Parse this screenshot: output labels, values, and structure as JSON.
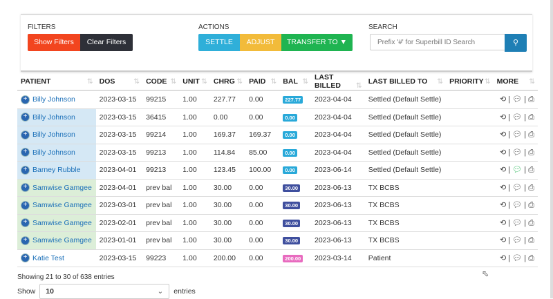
{
  "filters": {
    "label": "FILTERS",
    "show": "Show Filters",
    "clear": "Clear Filters"
  },
  "actions": {
    "label": "ACTIONS",
    "settle": "SETTLE",
    "adjust": "ADJUST",
    "transfer": "TRANSFER TO ▼"
  },
  "search": {
    "label": "SEARCH",
    "placeholder": "Prefix '#' for Superbill ID Search",
    "icon": "search-icon"
  },
  "columns": [
    "PATIENT",
    "DOS",
    "CODE",
    "UNIT",
    "CHRG",
    "PAID",
    "BAL",
    "LAST BILLED",
    "LAST BILLED TO",
    "PRIORITY",
    "MORE"
  ],
  "colors": {
    "blue_badge": "#29a9d9",
    "indigo_badge": "#3f4f9e",
    "pink_badge": "#e86bbf",
    "patient_blue": "#d5e8f5",
    "patient_green": "#dceed8"
  },
  "rows": [
    {
      "patient": "Billy Johnson",
      "dos": "2023-03-15",
      "code": "99215",
      "unit": "1.00",
      "chrg": "227.77",
      "paid": "0.00",
      "bal": "227.77",
      "last_billed": "2023-04-04",
      "last_billed_to": "Settled (Default Settle)",
      "priority": "",
      "bg": "#ffffff",
      "badge": "#29a9d9",
      "comment_green": false
    },
    {
      "patient": "Billy Johnson",
      "dos": "2023-03-15",
      "code": "36415",
      "unit": "1.00",
      "chrg": "0.00",
      "paid": "0.00",
      "bal": "0.00",
      "last_billed": "2023-04-04",
      "last_billed_to": "Settled (Default Settle)",
      "priority": "",
      "bg": "#d5e8f5",
      "badge": "#29a9d9",
      "comment_green": false
    },
    {
      "patient": "Billy Johnson",
      "dos": "2023-03-15",
      "code": "99214",
      "unit": "1.00",
      "chrg": "169.37",
      "paid": "169.37",
      "bal": "0.00",
      "last_billed": "2023-04-04",
      "last_billed_to": "Settled (Default Settle)",
      "priority": "",
      "bg": "#d5e8f5",
      "badge": "#29a9d9",
      "comment_green": false
    },
    {
      "patient": "Billy Johnson",
      "dos": "2023-03-15",
      "code": "99213",
      "unit": "1.00",
      "chrg": "114.84",
      "paid": "85.00",
      "bal": "0.00",
      "last_billed": "2023-04-04",
      "last_billed_to": "Settled (Default Settle)",
      "priority": "",
      "bg": "#d5e8f5",
      "badge": "#29a9d9",
      "comment_green": false
    },
    {
      "patient": "Barney Rubble",
      "dos": "2023-04-01",
      "code": "99213",
      "unit": "1.00",
      "chrg": "123.45",
      "paid": "100.00",
      "bal": "0.00",
      "last_billed": "2023-06-14",
      "last_billed_to": "Settled (Default Settle)",
      "priority": "",
      "bg": "#d5e8f5",
      "badge": "#29a9d9",
      "comment_green": true
    },
    {
      "patient": "Samwise Gamgee",
      "dos": "2023-04-01",
      "code": "prev bal",
      "unit": "1.00",
      "chrg": "30.00",
      "paid": "0.00",
      "bal": "30.00",
      "last_billed": "2023-06-13",
      "last_billed_to": "TX BCBS",
      "priority": "",
      "bg": "#dceed8",
      "badge": "#3f4f9e",
      "comment_green": false
    },
    {
      "patient": "Samwise Gamgee",
      "dos": "2023-03-01",
      "code": "prev bal",
      "unit": "1.00",
      "chrg": "30.00",
      "paid": "0.00",
      "bal": "30.00",
      "last_billed": "2023-06-13",
      "last_billed_to": "TX BCBS",
      "priority": "",
      "bg": "#dceed8",
      "badge": "#3f4f9e",
      "comment_green": false
    },
    {
      "patient": "Samwise Gamgee",
      "dos": "2023-02-01",
      "code": "prev bal",
      "unit": "1.00",
      "chrg": "30.00",
      "paid": "0.00",
      "bal": "30.00",
      "last_billed": "2023-06-13",
      "last_billed_to": "TX BCBS",
      "priority": "",
      "bg": "#dceed8",
      "badge": "#3f4f9e",
      "comment_green": false
    },
    {
      "patient": "Samwise Gamgee",
      "dos": "2023-01-01",
      "code": "prev bal",
      "unit": "1.00",
      "chrg": "30.00",
      "paid": "0.00",
      "bal": "30.00",
      "last_billed": "2023-06-13",
      "last_billed_to": "TX BCBS",
      "priority": "",
      "bg": "#dceed8",
      "badge": "#3f4f9e",
      "comment_green": false
    },
    {
      "patient": "Katie Test",
      "dos": "2023-03-15",
      "code": "99223",
      "unit": "1.00",
      "chrg": "200.00",
      "paid": "0.00",
      "bal": "200.00",
      "last_billed": "2023-03-14",
      "last_billed_to": "Patient",
      "priority": "",
      "bg": "#ffffff",
      "badge": "#e86bbf",
      "comment_green": false
    }
  ],
  "footer": {
    "info": "Showing 21 to 30 of 638 entries",
    "show": "Show",
    "page_size": "10",
    "entries": "entries"
  }
}
